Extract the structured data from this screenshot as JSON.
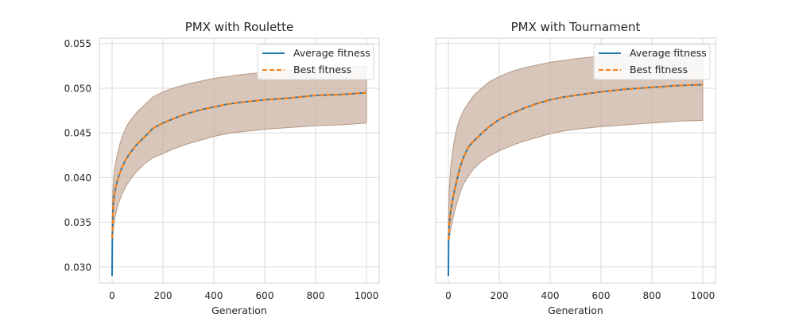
{
  "chart_data": [
    {
      "type": "line",
      "title": "PMX with Roulette",
      "xlabel": "Generation",
      "ylabel": "",
      "xlim": [
        -50,
        1050
      ],
      "ylim": [
        0.0282,
        0.0556
      ],
      "xticks": [
        "0",
        "200",
        "400",
        "600",
        "800",
        "1000"
      ],
      "yticks": [
        "0.030",
        "0.035",
        "0.040",
        "0.045",
        "0.050",
        "0.055"
      ],
      "grid": true,
      "legend_position": "upper right",
      "x": [
        0,
        1,
        2,
        3,
        5,
        8,
        10,
        15,
        20,
        30,
        40,
        50,
        60,
        80,
        100,
        130,
        160,
        200,
        250,
        300,
        350,
        400,
        450,
        500,
        600,
        700,
        800,
        900,
        1000
      ],
      "series": [
        {
          "name": "Average fitness",
          "color": "#1f77b4",
          "style": "solid",
          "values": [
            0.029,
            0.0335,
            0.035,
            0.036,
            0.037,
            0.0378,
            0.0383,
            0.039,
            0.0396,
            0.0405,
            0.0412,
            0.0418,
            0.0423,
            0.0431,
            0.0438,
            0.0446,
            0.0455,
            0.0461,
            0.0467,
            0.0472,
            0.0476,
            0.0479,
            0.0482,
            0.0484,
            0.0487,
            0.0489,
            0.0492,
            0.0493,
            0.0495
          ]
        },
        {
          "name": "Best fitness",
          "color": "#ff7f0e",
          "style": "dashed",
          "values": [
            0.0332,
            0.0338,
            0.035,
            0.036,
            0.037,
            0.0378,
            0.0383,
            0.039,
            0.0396,
            0.0405,
            0.0412,
            0.0418,
            0.0423,
            0.0431,
            0.0438,
            0.0446,
            0.0455,
            0.0461,
            0.0467,
            0.0472,
            0.0476,
            0.0479,
            0.0482,
            0.0484,
            0.0487,
            0.0489,
            0.0492,
            0.0493,
            0.0495
          ]
        }
      ],
      "band": {
        "color": "#c7b09e",
        "upper": [
          0.034,
          0.0355,
          0.0372,
          0.0385,
          0.0396,
          0.0405,
          0.041,
          0.0418,
          0.0425,
          0.0437,
          0.0446,
          0.0453,
          0.0459,
          0.0467,
          0.0474,
          0.0482,
          0.049,
          0.0496,
          0.0501,
          0.0505,
          0.0508,
          0.0511,
          0.0513,
          0.0515,
          0.0518,
          0.052,
          0.0522,
          0.0523,
          0.0525
        ],
        "lower": [
          0.032,
          0.0325,
          0.033,
          0.0335,
          0.0342,
          0.0349,
          0.0353,
          0.036,
          0.0366,
          0.0375,
          0.0382,
          0.0388,
          0.0393,
          0.0401,
          0.0408,
          0.0416,
          0.0422,
          0.0427,
          0.0433,
          0.0438,
          0.0442,
          0.0446,
          0.0449,
          0.0451,
          0.0454,
          0.0456,
          0.0458,
          0.0459,
          0.0461
        ]
      }
    },
    {
      "type": "line",
      "title": "PMX with Tournament",
      "xlabel": "Generation",
      "ylabel": "",
      "xlim": [
        -50,
        1050
      ],
      "ylim": [
        0.0282,
        0.0556
      ],
      "xticks": [
        "0",
        "200",
        "400",
        "600",
        "800",
        "1000"
      ],
      "yticks": [],
      "grid": true,
      "legend_position": "upper right",
      "x": [
        0,
        1,
        2,
        3,
        5,
        8,
        10,
        15,
        20,
        30,
        40,
        50,
        60,
        80,
        100,
        130,
        160,
        200,
        250,
        300,
        350,
        400,
        450,
        500,
        600,
        700,
        800,
        900,
        1000
      ],
      "series": [
        {
          "name": "Average fitness",
          "color": "#1f77b4",
          "style": "solid",
          "values": [
            0.029,
            0.0332,
            0.034,
            0.0346,
            0.0352,
            0.036,
            0.0364,
            0.0372,
            0.038,
            0.0393,
            0.0405,
            0.0415,
            0.0423,
            0.0435,
            0.0441,
            0.0449,
            0.0457,
            0.0465,
            0.0472,
            0.0478,
            0.0483,
            0.0487,
            0.049,
            0.0492,
            0.0496,
            0.0499,
            0.0501,
            0.0503,
            0.0504
          ]
        },
        {
          "name": "Best fitness",
          "color": "#ff7f0e",
          "style": "dashed",
          "values": [
            0.033,
            0.0334,
            0.034,
            0.0346,
            0.0352,
            0.036,
            0.0364,
            0.0372,
            0.038,
            0.0393,
            0.0405,
            0.0415,
            0.0423,
            0.0435,
            0.0441,
            0.0449,
            0.0457,
            0.0465,
            0.0472,
            0.0478,
            0.0483,
            0.0487,
            0.049,
            0.0492,
            0.0496,
            0.0499,
            0.0501,
            0.0503,
            0.0504
          ]
        }
      ],
      "band": {
        "color": "#c7b09e",
        "upper": [
          0.0345,
          0.036,
          0.0372,
          0.0382,
          0.0395,
          0.0408,
          0.0414,
          0.0426,
          0.0436,
          0.0451,
          0.0462,
          0.0469,
          0.0475,
          0.0484,
          0.0492,
          0.05,
          0.0507,
          0.0513,
          0.0519,
          0.0523,
          0.0526,
          0.0529,
          0.0531,
          0.0533,
          0.0536,
          0.0538,
          0.054,
          0.0541,
          0.0542
        ],
        "lower": [
          0.0318,
          0.0322,
          0.0326,
          0.033,
          0.0335,
          0.034,
          0.0343,
          0.035,
          0.0357,
          0.0368,
          0.0378,
          0.0386,
          0.0393,
          0.0402,
          0.041,
          0.0418,
          0.0424,
          0.043,
          0.0436,
          0.0441,
          0.0445,
          0.0449,
          0.0452,
          0.0454,
          0.0457,
          0.0459,
          0.0461,
          0.0463,
          0.0464
        ]
      }
    }
  ]
}
